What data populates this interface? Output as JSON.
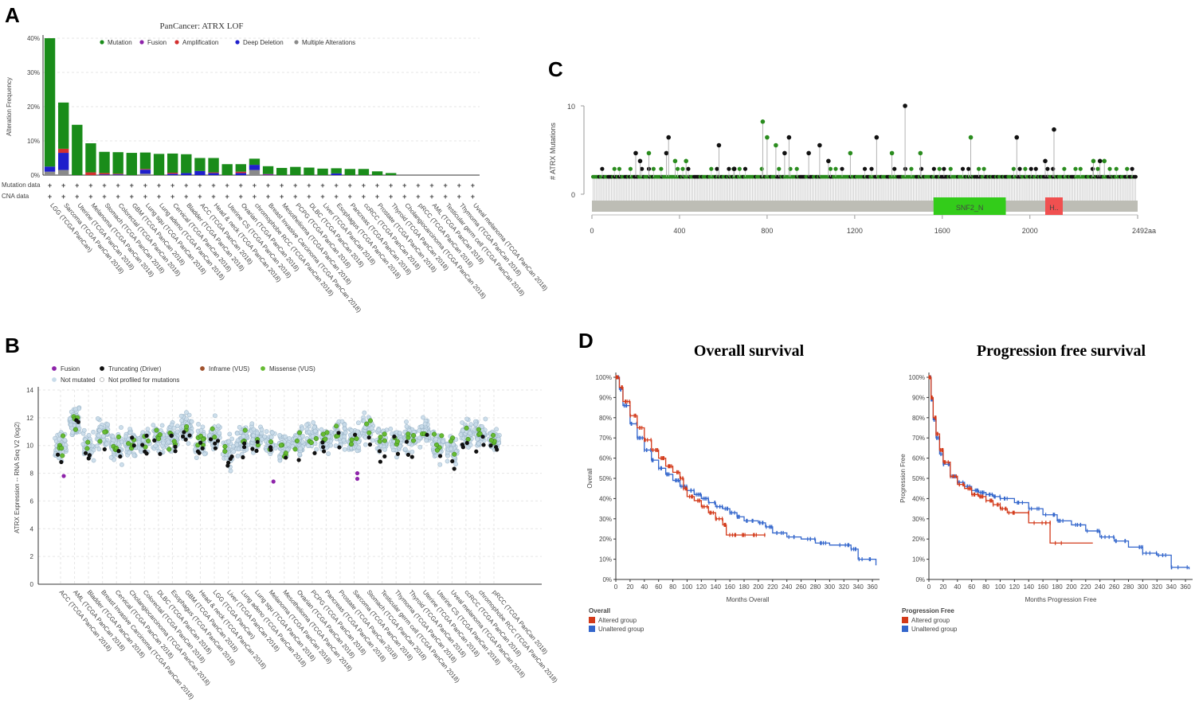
{
  "panels": {
    "a": "A",
    "b": "B",
    "c": "C",
    "d": "D"
  },
  "chart_data": [
    {
      "type": "bar",
      "panel": "A",
      "title": "PanCancer: ATRX LOF",
      "ylabel": "Alteration Frequency",
      "yticks": [
        "0%",
        "10%",
        "20%",
        "30%",
        "40%"
      ],
      "ylim": [
        0,
        40
      ],
      "legend": [
        {
          "label": "Mutation",
          "color": "#1a8c1a"
        },
        {
          "label": "Fusion",
          "color": "#8e24aa"
        },
        {
          "label": "Amplification",
          "color": "#d32f2f"
        },
        {
          "label": "Deep Deletion",
          "color": "#1f1fcc"
        },
        {
          "label": "Multiple Alterations",
          "color": "#8a8a8a"
        }
      ],
      "row_labels": [
        "Mutation data",
        "CNA data"
      ],
      "row_marker": "+",
      "categories": [
        "LGG (TCGA PanCan)",
        "Sarcoma (TCGA PanCan 2018)",
        "Uterine (TCGA PanCan 2018)",
        "Melanoma (TCGA PanCan 2018)",
        "Stomach (TCGA PanCan 2018)",
        "Colorectal (TCGA PanCan 2018)",
        "GBM (TCGA PanCan 2018)",
        "Lung squ (TCGA PanCan 2018)",
        "Lung adeno (TCGA PanCan 2018)",
        "Cervical (TCGA PanCan 2018)",
        "Bladder (TCGA PanCan 2018)",
        "ACC (TCGA PanCan 2018)",
        "Head & neck (TCGA PanCan 2018)",
        "Uterine CS (TCGA PanCan 2018)",
        "Ovarian (TCGA PanCan 2018)",
        "chromophobe RCC (TCGA PanCan 2018)",
        "Breast Invasive Carcinoma (TCGA PanCan 2018)",
        "Mesothelioma (TCGA PanCan 2018)",
        "PCPG (TCGA PanCan 2018)",
        "DLBC (TCGA PanCan 2018)",
        "Liver (TCGA PanCan 2018)",
        "Esophagus (TCGA PanCan 2018)",
        "Pancreas (TCGA PanCan 2018)",
        "ccRCC (TCGA PanCan 2018)",
        "Prostate (TCGA PanCan 2018)",
        "Thyroid (TCGA PanCan 2018)",
        "Cholangiocarcinoma (TCGA PanCan 2018)",
        "pRCC (TCGA PanCan 2018)",
        "AML (TCGA PanCan 2018)",
        "Testicular germ cell (TCGA PanCan 2018)",
        "Thymoma (TCGA PanCan 2018)",
        "Uveal melanoma (TCGA PanCan 2018)"
      ],
      "series": [
        {
          "name": "Mutation",
          "values": [
            37.5,
            13.5,
            14.7,
            8.5,
            6.2,
            6.3,
            6.5,
            4.8,
            6.2,
            5.6,
            5.5,
            3.8,
            4.2,
            3.2,
            2.2,
            1.8,
            2.3,
            2.1,
            2.4,
            2.2,
            1.9,
            1.5,
            1.8,
            1.8,
            1.1,
            0.6,
            0,
            0,
            0,
            0,
            0,
            0
          ]
        },
        {
          "name": "Fusion",
          "values": [
            0,
            0,
            0,
            0,
            0,
            0,
            0,
            0,
            0,
            0,
            0,
            0,
            0,
            0,
            0,
            0,
            0.3,
            0,
            0,
            0,
            0,
            0,
            0,
            0,
            0,
            0,
            0,
            0,
            0,
            0,
            0,
            0
          ]
        },
        {
          "name": "Amplification",
          "values": [
            0,
            1.2,
            0,
            0.8,
            0.4,
            0.2,
            0,
            0.2,
            0,
            0.3,
            0,
            0,
            0.2,
            0,
            0.4,
            0,
            0,
            0,
            0,
            0,
            0,
            0,
            0,
            0,
            0,
            0,
            0,
            0,
            0,
            0,
            0,
            0
          ]
        },
        {
          "name": "Deep Deletion",
          "values": [
            1.5,
            5.0,
            0,
            0,
            0.2,
            0.2,
            0,
            1.2,
            0,
            0.4,
            0.6,
            1.2,
            0.6,
            0,
            0.6,
            1.5,
            0,
            0,
            0,
            0,
            0,
            0.5,
            0,
            0,
            0,
            0,
            0,
            0,
            0,
            0,
            0,
            0
          ]
        },
        {
          "name": "Multiple Alterations",
          "values": [
            1.0,
            1.5,
            0,
            0,
            0,
            0,
            0,
            0.4,
            0,
            0,
            0,
            0,
            0,
            0,
            0,
            1.5,
            0,
            0,
            0,
            0,
            0,
            0,
            0,
            0,
            0,
            0,
            0,
            0,
            0,
            0,
            0,
            0
          ]
        }
      ]
    },
    {
      "type": "scatter",
      "panel": "B",
      "ylabel": "ATRX Expression -- RNA Seq V2 (log2)",
      "ylim": [
        0,
        14
      ],
      "yticks": [
        0,
        2,
        4,
        6,
        8,
        10,
        12,
        14
      ],
      "legend": [
        {
          "label": "Fusion",
          "color": "#8e24aa",
          "kind": "filled"
        },
        {
          "label": "Truncating (Driver)",
          "color": "#111111",
          "kind": "filled"
        },
        {
          "label": "Inframe (VUS)",
          "color": "#a0522d",
          "kind": "filled"
        },
        {
          "label": "Missense (VUS)",
          "color": "#66bb33",
          "kind": "filled"
        },
        {
          "label": "Not mutated",
          "color": "#c9dcea",
          "kind": "filled"
        },
        {
          "label": "Not profiled for mutations",
          "color": "#ffffff",
          "kind": "open"
        }
      ],
      "categories": [
        "ACC (TCGA PanCan 2018)",
        "AML (TCGA PanCan 2018)",
        "Bladder (TCGA PanCan 2018)",
        "Breast Invasive Carcinoma (TCGA PanCan 2018)",
        "Cervical (TCGA PanCan 2018)",
        "Cholangiocarcinoma (TCGA PanCan 2018)",
        "Colorectal (TCGA PanCan 2018)",
        "DLBC (TCGA PanCan 2018)",
        "Esophagus (TCGA PanCan 2018)",
        "GBM (TCGA PanCan 2018)",
        "Head & neck (TCGA PanCan 2018)",
        "LGG (TCGA PanCan)",
        "Liver (TCGA PanCan 2018)",
        "Lung adeno (TCGA PanCan 2018)",
        "Lung squ (TCGA PanCan 2018)",
        "Melanoma (TCGA PanCan 2018)",
        "Mesothelioma (TCGA PanCan 2018)",
        "Ovarian (TCGA PanCan 2018)",
        "PCPG (TCGA PanCan 2018)",
        "Pancreas (TCGA PanCan 2018)",
        "Prostate (TCGA PanCan 2018)",
        "Sarcoma (TCGA PanCan 2018)",
        "Stomach (TCGA PanCan 2018)",
        "Testicular germ cell (TCGA PanCan 2018)",
        "Thymoma (TCGA PanCan 2018)",
        "Thyroid (TCGA PanCan 2018)",
        "Uterine (TCGA PanCan 2018)",
        "Uterine CS (TCGA PanCan 2018)",
        "Uveal melanoma (TCGA PanCan 2018)",
        "ccRCC (TCGA PanCan 2018)",
        "chromophobe RCC (TCGA PanCan 2018)",
        "pRCC (TCGA PanCan 2018)"
      ],
      "medians": [
        10.0,
        11.8,
        10.0,
        10.8,
        10.0,
        10.2,
        10.4,
        10.5,
        10.6,
        11.3,
        10.3,
        10.7,
        9.6,
        10.4,
        10.6,
        10.2,
        9.8,
        10.3,
        10.7,
        10.5,
        10.8,
        10.3,
        11.3,
        10.4,
        10.3,
        10.5,
        10.9,
        10.0,
        9.8,
        10.8,
        10.8,
        10.4
      ]
    },
    {
      "type": "lollipop",
      "panel": "C",
      "ylabel": "# ATRX Mutations",
      "yticks": [
        0,
        10
      ],
      "xticks": [
        "0",
        "400",
        "800",
        "1200",
        "1600",
        "2000",
        "2492aa"
      ],
      "xlim": [
        0,
        2492
      ],
      "domains": [
        {
          "name": "SNF2_N",
          "start": 1560,
          "end": 1890,
          "color": "#33cc1a"
        },
        {
          "name": "H..",
          "start": 2070,
          "end": 2150,
          "color": "#f05050"
        }
      ],
      "peaks": [
        {
          "pos": 200,
          "count": 4,
          "type": "trunc"
        },
        {
          "pos": 220,
          "count": 3,
          "type": "trunc"
        },
        {
          "pos": 260,
          "count": 4,
          "type": "missense"
        },
        {
          "pos": 340,
          "count": 4,
          "type": "trunc"
        },
        {
          "pos": 350,
          "count": 6,
          "type": "trunc"
        },
        {
          "pos": 380,
          "count": 3,
          "type": "missense"
        },
        {
          "pos": 430,
          "count": 3,
          "type": "missense"
        },
        {
          "pos": 580,
          "count": 5,
          "type": "trunc"
        },
        {
          "pos": 650,
          "count": 2,
          "type": "trunc"
        },
        {
          "pos": 780,
          "count": 8,
          "type": "missense"
        },
        {
          "pos": 800,
          "count": 6,
          "type": "missense"
        },
        {
          "pos": 840,
          "count": 5,
          "type": "missense"
        },
        {
          "pos": 880,
          "count": 4,
          "type": "trunc"
        },
        {
          "pos": 900,
          "count": 6,
          "type": "trunc"
        },
        {
          "pos": 990,
          "count": 4,
          "type": "trunc"
        },
        {
          "pos": 1040,
          "count": 5,
          "type": "trunc"
        },
        {
          "pos": 1080,
          "count": 3,
          "type": "trunc"
        },
        {
          "pos": 1180,
          "count": 4,
          "type": "missense"
        },
        {
          "pos": 1300,
          "count": 6,
          "type": "trunc"
        },
        {
          "pos": 1370,
          "count": 4,
          "type": "missense"
        },
        {
          "pos": 1430,
          "count": 10,
          "type": "trunc"
        },
        {
          "pos": 1500,
          "count": 4,
          "type": "missense"
        },
        {
          "pos": 1730,
          "count": 6,
          "type": "missense"
        },
        {
          "pos": 1940,
          "count": 6,
          "type": "trunc"
        },
        {
          "pos": 2070,
          "count": 3,
          "type": "trunc"
        },
        {
          "pos": 2110,
          "count": 7,
          "type": "trunc"
        },
        {
          "pos": 2290,
          "count": 3,
          "type": "missense"
        },
        {
          "pos": 2320,
          "count": 3,
          "type": "trunc"
        },
        {
          "pos": 2340,
          "count": 3,
          "type": "missense"
        }
      ]
    },
    {
      "type": "line",
      "panel": "D1",
      "title": "Overall survival",
      "ylabel": "Overall",
      "xlabel": "Months Overall",
      "xticks": [
        0,
        20,
        40,
        60,
        80,
        100,
        120,
        140,
        160,
        180,
        200,
        220,
        240,
        260,
        280,
        300,
        320,
        340,
        360
      ],
      "yticks": [
        "0%",
        "10%",
        "20%",
        "30%",
        "40%",
        "50%",
        "60%",
        "70%",
        "80%",
        "90%",
        "100%"
      ],
      "legend_title": "Overall",
      "series": [
        {
          "name": "Altered group",
          "color": "#d33a1a",
          "points": [
            [
              0,
              100
            ],
            [
              5,
              95
            ],
            [
              10,
              88
            ],
            [
              20,
              81
            ],
            [
              30,
              75
            ],
            [
              40,
              69
            ],
            [
              50,
              64
            ],
            [
              60,
              60
            ],
            [
              70,
              56
            ],
            [
              80,
              53
            ],
            [
              90,
              50
            ],
            [
              95,
              45
            ],
            [
              100,
              41
            ],
            [
              110,
              39
            ],
            [
              120,
              36
            ],
            [
              130,
              33
            ],
            [
              140,
              30
            ],
            [
              150,
              27
            ],
            [
              155,
              22
            ],
            [
              170,
              22
            ],
            [
              190,
              22
            ],
            [
              210,
              22
            ]
          ]
        },
        {
          "name": "Unaltered group",
          "color": "#3366cc",
          "points": [
            [
              0,
              100
            ],
            [
              5,
              94
            ],
            [
              10,
              86
            ],
            [
              20,
              77
            ],
            [
              30,
              70
            ],
            [
              40,
              64
            ],
            [
              50,
              59
            ],
            [
              60,
              55
            ],
            [
              70,
              52
            ],
            [
              80,
              49
            ],
            [
              90,
              46
            ],
            [
              100,
              44
            ],
            [
              110,
              42
            ],
            [
              120,
              40
            ],
            [
              130,
              38
            ],
            [
              140,
              36
            ],
            [
              150,
              35
            ],
            [
              160,
              33
            ],
            [
              170,
              31
            ],
            [
              180,
              29
            ],
            [
              200,
              28
            ],
            [
              210,
              26
            ],
            [
              220,
              23
            ],
            [
              240,
              21
            ],
            [
              260,
              20
            ],
            [
              280,
              18
            ],
            [
              300,
              17
            ],
            [
              330,
              15
            ],
            [
              340,
              10
            ],
            [
              365,
              7
            ]
          ]
        }
      ]
    },
    {
      "type": "line",
      "panel": "D2",
      "title": "Progression free survival",
      "ylabel": "Progression Free",
      "xlabel": "Months Progression Free",
      "xticks": [
        0,
        20,
        40,
        60,
        80,
        100,
        120,
        140,
        160,
        180,
        200,
        220,
        240,
        260,
        280,
        300,
        320,
        340,
        360
      ],
      "yticks": [
        "0%",
        "10%",
        "20%",
        "30%",
        "40%",
        "50%",
        "60%",
        "70%",
        "80%",
        "90%",
        "100%"
      ],
      "legend_title": "Progression Free",
      "series": [
        {
          "name": "Altered group",
          "color": "#d33a1a",
          "points": [
            [
              0,
              100
            ],
            [
              3,
              90
            ],
            [
              6,
              80
            ],
            [
              10,
              72
            ],
            [
              15,
              64
            ],
            [
              20,
              58
            ],
            [
              30,
              51
            ],
            [
              40,
              47
            ],
            [
              50,
              45
            ],
            [
              60,
              42
            ],
            [
              70,
              41
            ],
            [
              80,
              39
            ],
            [
              90,
              37
            ],
            [
              100,
              35
            ],
            [
              110,
              33
            ],
            [
              140,
              33
            ],
            [
              140,
              28
            ],
            [
              170,
              28
            ],
            [
              170,
              18
            ],
            [
              230,
              18
            ]
          ]
        },
        {
          "name": "Unaltered group",
          "color": "#3366cc",
          "points": [
            [
              0,
              100
            ],
            [
              3,
              89
            ],
            [
              6,
              79
            ],
            [
              10,
              70
            ],
            [
              15,
              62
            ],
            [
              20,
              57
            ],
            [
              30,
              51
            ],
            [
              40,
              48
            ],
            [
              50,
              46
            ],
            [
              60,
              44
            ],
            [
              70,
              43
            ],
            [
              80,
              42
            ],
            [
              90,
              41
            ],
            [
              100,
              40
            ],
            [
              120,
              38
            ],
            [
              140,
              35
            ],
            [
              160,
              32
            ],
            [
              180,
              29
            ],
            [
              200,
              27
            ],
            [
              220,
              24
            ],
            [
              240,
              21
            ],
            [
              260,
              19
            ],
            [
              280,
              16
            ],
            [
              300,
              13
            ],
            [
              320,
              12
            ],
            [
              340,
              6
            ],
            [
              365,
              5
            ]
          ]
        }
      ]
    }
  ]
}
